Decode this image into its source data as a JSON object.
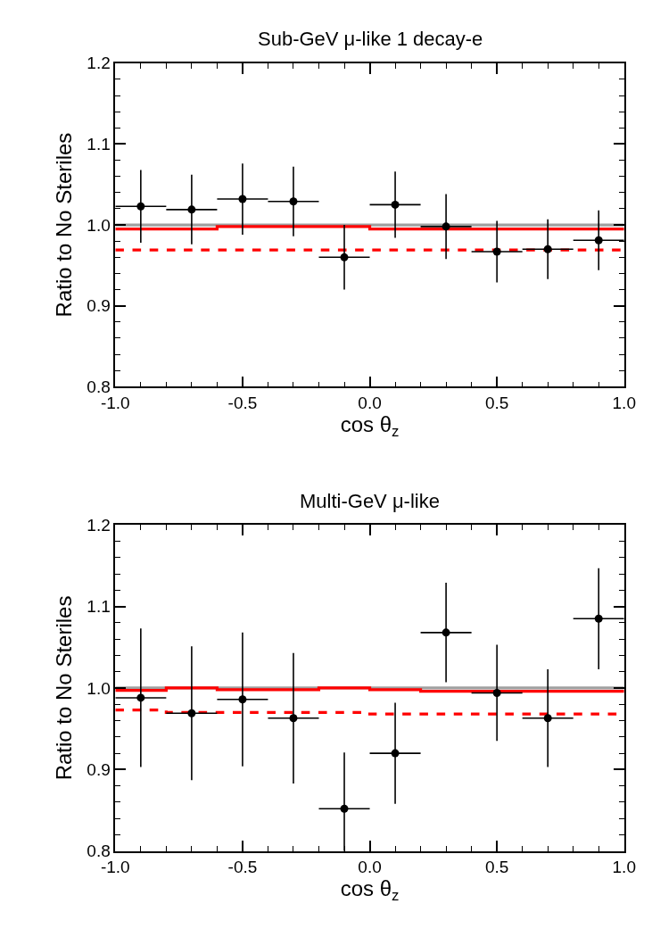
{
  "chart_data": [
    {
      "type": "scatter",
      "title": "Sub-GeV μ-like 1 decay-e",
      "xlabel": "cos θ$_{z}$",
      "ylabel": "Ratio to No Steriles",
      "xlim": [
        -1.0,
        1.0
      ],
      "xticks": [
        {
          "value": -1.0,
          "label": "-1.0"
        },
        {
          "value": -0.5,
          "label": "-0.5"
        },
        {
          "value": 0.0,
          "label": "0.0"
        },
        {
          "value": 0.5,
          "label": "0.5"
        },
        {
          "value": 1.0,
          "label": "1.0"
        }
      ],
      "ylim": [
        0.8,
        1.2
      ],
      "yticks": [
        0.8,
        0.9,
        {
          "value": 1.0,
          "label": "1.0"
        },
        1.1,
        1.2
      ],
      "marker": "circle",
      "ref_lines": [
        {
          "axis": "y",
          "value": 1.0,
          "label": null,
          "color": "#a0a0a0"
        }
      ],
      "series": [
        {
          "type": "step",
          "color": "#ff0000",
          "line_style": "solid",
          "marker": "none",
          "x": [
            -1.0,
            -0.8,
            -0.6,
            -0.4,
            -0.2,
            0.0,
            0.2,
            0.4,
            0.6,
            0.8,
            1.0
          ],
          "values": [
            0.995,
            0.995,
            0.998,
            0.998,
            0.998,
            0.995,
            0.995,
            0.995,
            0.995,
            0.995,
            0.995
          ]
        },
        {
          "type": "step",
          "color": "#ff0000",
          "line_style": "dashed",
          "marker": "none",
          "x": [
            -1.0,
            -0.8,
            -0.6,
            -0.4,
            -0.2,
            0.0,
            0.2,
            0.4,
            0.6,
            0.8,
            1.0
          ],
          "values": [
            0.969,
            0.969,
            0.969,
            0.969,
            0.969,
            0.969,
            0.969,
            0.969,
            0.969,
            0.969,
            0.969
          ]
        },
        {
          "type": "scatter",
          "color": "#000000",
          "x": [
            -0.9,
            -0.7,
            -0.5,
            -0.3,
            -0.1,
            0.1,
            0.3,
            0.5,
            0.7,
            0.9
          ],
          "values": [
            1.023,
            1.019,
            1.032,
            1.029,
            0.96,
            1.025,
            0.998,
            0.967,
            0.97,
            0.981
          ],
          "errors": [
            0.045,
            0.043,
            0.044,
            0.043,
            0.04,
            0.041,
            0.04,
            0.038,
            0.037,
            0.037
          ],
          "xerrors": [
            0.1,
            0.1,
            0.1,
            0.1,
            0.1,
            0.1,
            0.1,
            0.1,
            0.1,
            0.1
          ]
        }
      ]
    },
    {
      "type": "scatter",
      "title": "Multi-GeV μ-like",
      "xlabel": "cos θ$_{z}$",
      "ylabel": "Ratio to No Steriles",
      "xlim": [
        -1.0,
        1.0
      ],
      "xticks": [
        {
          "value": -1.0,
          "label": "-1.0"
        },
        {
          "value": -0.5,
          "label": "-0.5"
        },
        {
          "value": 0.0,
          "label": "0.0"
        },
        {
          "value": 0.5,
          "label": "0.5"
        },
        {
          "value": 1.0,
          "label": "1.0"
        }
      ],
      "ylim": [
        0.8,
        1.2
      ],
      "yticks": [
        0.8,
        0.9,
        {
          "value": 1.0,
          "label": "1.0"
        },
        1.1,
        1.2
      ],
      "marker": "circle",
      "ref_lines": [
        {
          "axis": "y",
          "value": 1.0,
          "label": null,
          "color": "#a0a0a0"
        }
      ],
      "series": [
        {
          "type": "step",
          "color": "#ff0000",
          "line_style": "solid",
          "marker": "none",
          "x": [
            -1.0,
            -0.8,
            -0.6,
            -0.4,
            -0.2,
            0.0,
            0.2,
            0.4,
            0.6,
            0.8,
            1.0
          ],
          "values": [
            0.997,
            1.0,
            0.998,
            0.998,
            1.0,
            0.998,
            0.996,
            0.996,
            0.996,
            0.996,
            0.996
          ]
        },
        {
          "type": "step",
          "color": "#ff0000",
          "line_style": "dashed",
          "marker": "none",
          "x": [
            -1.0,
            -0.8,
            -0.6,
            -0.4,
            -0.2,
            0.0,
            0.2,
            0.4,
            0.6,
            0.8,
            1.0
          ],
          "values": [
            0.973,
            0.97,
            0.97,
            0.97,
            0.97,
            0.968,
            0.968,
            0.968,
            0.968,
            0.968,
            0.968
          ]
        },
        {
          "type": "scatter",
          "color": "#000000",
          "x": [
            -0.9,
            -0.7,
            -0.5,
            -0.3,
            -0.1,
            0.1,
            0.3,
            0.5,
            0.7,
            0.9
          ],
          "values": [
            0.988,
            0.969,
            0.986,
            0.963,
            0.852,
            0.92,
            1.068,
            0.994,
            0.963,
            1.085
          ],
          "errors": [
            0.085,
            0.082,
            0.082,
            0.08,
            [
              0.8,
              0.921
            ],
            0.062,
            0.061,
            0.059,
            0.06,
            0.062
          ],
          "xerrors": [
            0.1,
            0.1,
            0.1,
            0.1,
            0.1,
            0.1,
            0.1,
            0.1,
            0.1,
            0.1
          ]
        }
      ]
    }
  ]
}
